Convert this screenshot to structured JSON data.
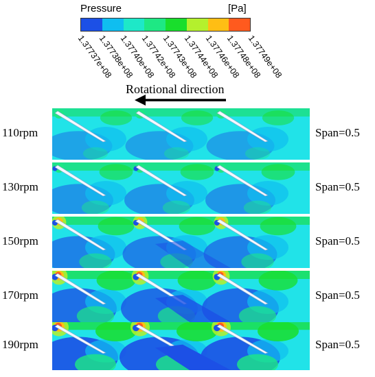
{
  "legend": {
    "title": "Pressure",
    "unit": "[Pa]",
    "colors": [
      "#1c50e6",
      "#0fbef0",
      "#1ee8c8",
      "#1ee884",
      "#19de2c",
      "#b4f02d",
      "#ffbe14",
      "#ff5a1e"
    ],
    "ticks": [
      "1.37737e+08",
      "1.37738e+08",
      "1.37740e+08",
      "1.37742e+08",
      "1.37743e+08",
      "1.37744e+08",
      "1.37746e+08",
      "1.37748e+08",
      "1.37749e+08"
    ]
  },
  "rotation": {
    "label": "Rotational direction",
    "icon": "arrow-left-icon"
  },
  "rows": [
    {
      "speed": "110rpm",
      "span": "Span=0.5"
    },
    {
      "speed": "130rpm",
      "span": "Span=0.5"
    },
    {
      "speed": "150rpm",
      "span": "Span=0.5"
    },
    {
      "speed": "170rpm",
      "span": "Span=0.5"
    },
    {
      "speed": "190rpm",
      "span": "Span=0.5"
    }
  ]
}
